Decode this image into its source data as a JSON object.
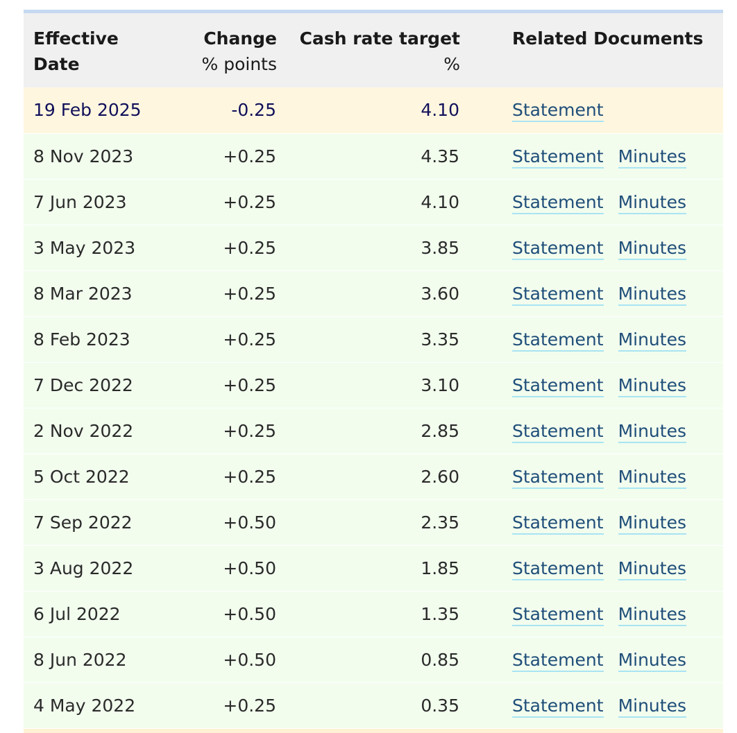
{
  "header": {
    "effective_date": "Effective Date",
    "change_main": "Change",
    "change_sub": "% points",
    "rate_main": "Cash rate target",
    "rate_sub": "%",
    "docs": "Related Documents"
  },
  "colors": {
    "header_bg": "#f0f0f0",
    "top_border": "#c5d9f1",
    "current_row_bg": "#fff6e0",
    "row_bg": "#f2fdee",
    "link": "#1f4e79",
    "link_underline": "#a9e4f2"
  },
  "rows": [
    {
      "date": "19 Feb 2025",
      "change": "-0.25",
      "rate": "4.10",
      "docs": [
        "Statement"
      ]
    },
    {
      "date": "8 Nov 2023",
      "change": "+0.25",
      "rate": "4.35",
      "docs": [
        "Statement",
        "Minutes"
      ]
    },
    {
      "date": "7 Jun 2023",
      "change": "+0.25",
      "rate": "4.10",
      "docs": [
        "Statement",
        "Minutes"
      ]
    },
    {
      "date": "3 May 2023",
      "change": "+0.25",
      "rate": "3.85",
      "docs": [
        "Statement",
        "Minutes"
      ]
    },
    {
      "date": "8 Mar 2023",
      "change": "+0.25",
      "rate": "3.60",
      "docs": [
        "Statement",
        "Minutes"
      ]
    },
    {
      "date": "8 Feb 2023",
      "change": "+0.25",
      "rate": "3.35",
      "docs": [
        "Statement",
        "Minutes"
      ]
    },
    {
      "date": "7 Dec 2022",
      "change": "+0.25",
      "rate": "3.10",
      "docs": [
        "Statement",
        "Minutes"
      ]
    },
    {
      "date": "2 Nov 2022",
      "change": "+0.25",
      "rate": "2.85",
      "docs": [
        "Statement",
        "Minutes"
      ]
    },
    {
      "date": "5 Oct 2022",
      "change": "+0.25",
      "rate": "2.60",
      "docs": [
        "Statement",
        "Minutes"
      ]
    },
    {
      "date": "7 Sep 2022",
      "change": "+0.50",
      "rate": "2.35",
      "docs": [
        "Statement",
        "Minutes"
      ]
    },
    {
      "date": "3 Aug 2022",
      "change": "+0.50",
      "rate": "1.85",
      "docs": [
        "Statement",
        "Minutes"
      ]
    },
    {
      "date": "6 Jul 2022",
      "change": "+0.50",
      "rate": "1.35",
      "docs": [
        "Statement",
        "Minutes"
      ]
    },
    {
      "date": "8 Jun 2022",
      "change": "+0.50",
      "rate": "0.85",
      "docs": [
        "Statement",
        "Minutes"
      ]
    },
    {
      "date": "4 May 2022",
      "change": "+0.25",
      "rate": "0.35",
      "docs": [
        "Statement",
        "Minutes"
      ]
    }
  ]
}
